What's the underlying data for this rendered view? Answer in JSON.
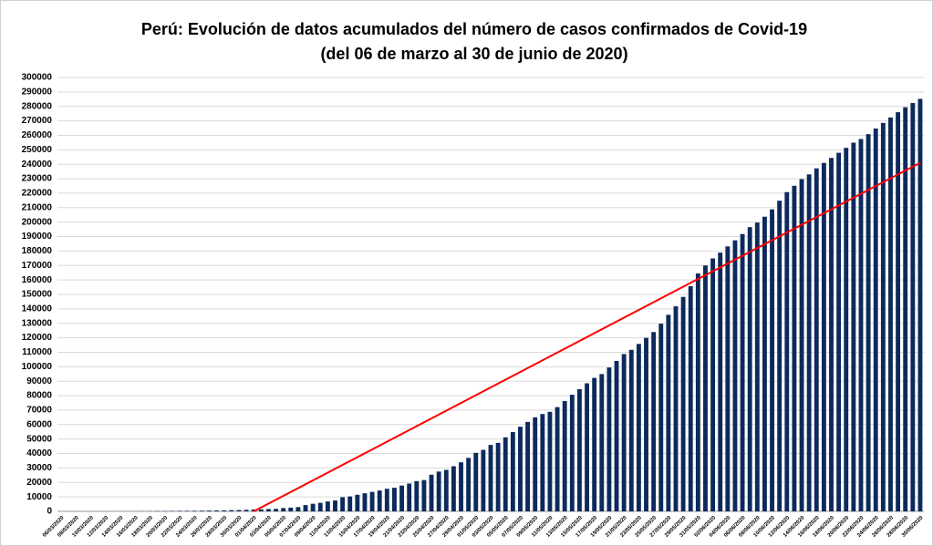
{
  "chart_data": {
    "type": "bar",
    "title": "Perú: Evolución de datos acumulados del número de casos confirmados de Covid-19",
    "subtitle": "(del 06 de marzo al 30 de junio de 2020)",
    "color": "#0d2a5c",
    "grid": true,
    "ylim": [
      0,
      300000
    ],
    "yticks": [
      0,
      10000,
      20000,
      30000,
      40000,
      50000,
      60000,
      70000,
      80000,
      90000,
      100000,
      110000,
      120000,
      130000,
      140000,
      150000,
      160000,
      170000,
      180000,
      190000,
      200000,
      210000,
      220000,
      230000,
      240000,
      250000,
      260000,
      270000,
      280000,
      290000,
      300000
    ],
    "categories": [
      "06/03/2020",
      null,
      "08/03/2020",
      null,
      "10/03/2020",
      null,
      "12/03/2020",
      null,
      "14/03/2020",
      null,
      "16/03/2020",
      null,
      "18/03/2020",
      null,
      "20/03/2020",
      null,
      "22/03/2020",
      null,
      "24/03/2020",
      null,
      "26/03/2020",
      null,
      "28/03/2020",
      null,
      "30/03/2020",
      null,
      "01/04/2020",
      null,
      "03/04/2020",
      null,
      "05/04/2020",
      null,
      "07/04/2020",
      null,
      "09/04/2020",
      null,
      "11/04/2020",
      null,
      "13/04/2020",
      null,
      "15/04/2020",
      null,
      "17/04/2020",
      null,
      "19/04/2020",
      null,
      "21/04/2020",
      null,
      "23/04/2020",
      null,
      "25/04/2020",
      null,
      "27/04/2020",
      null,
      "29/04/2020",
      null,
      "01/05/2020",
      null,
      "03/05/2020",
      null,
      "05/05/2020",
      null,
      "07/05/2020",
      null,
      "09/05/2020",
      null,
      "11/05/2020",
      null,
      "13/05/2020",
      null,
      "15/05/2020",
      null,
      "17/05/2020",
      null,
      "19/05/2020",
      null,
      "21/05/2020",
      null,
      "23/05/2020",
      null,
      "25/05/2020",
      null,
      "27/05/2020",
      null,
      "29/05/2020",
      null,
      "31/05/2020",
      null,
      "02/06/2020",
      null,
      "04/06/2020",
      null,
      "06/06/2020",
      null,
      "08/06/2020",
      null,
      "10/06/2020",
      null,
      "12/06/2020",
      null,
      "14/06/2020",
      null,
      "16/06/2020",
      null,
      "18/06/2020",
      null,
      "20/06/2020",
      null,
      "22/06/2020",
      null,
      "24/06/2020",
      null,
      "26/06/2020",
      null,
      "28/06/2020",
      null,
      "30/06/2020"
    ],
    "values": [
      1,
      6,
      7,
      9,
      11,
      17,
      22,
      38,
      43,
      71,
      86,
      117,
      145,
      234,
      234,
      318,
      363,
      395,
      416,
      480,
      580,
      635,
      671,
      852,
      950,
      1065,
      1323,
      1414,
      1595,
      1746,
      2281,
      2561,
      2954,
      4342,
      5256,
      5897,
      6848,
      7519,
      9784,
      10303,
      11475,
      12491,
      13489,
      14420,
      15628,
      16325,
      17837,
      19250,
      20914,
      21648,
      25331,
      27517,
      28699,
      31190,
      33931,
      36976,
      40459,
      42534,
      45928,
      47372,
      51189,
      54817,
      58526,
      61847,
      65015,
      67307,
      68822,
      72059,
      76306,
      80604,
      84495,
      88541,
      92273,
      94933,
      99483,
      104020,
      108769,
      111698,
      115754,
      119959,
      123979,
      129751,
      135905,
      141779,
      148285,
      155671,
      164476,
      170039,
      174884,
      178914,
      183198,
      187400,
      191758,
      196515,
      199696,
      203736,
      208823,
      214788,
      220749,
      225132,
      229736,
      232992,
      237156,
      240908,
      244388,
      247925,
      251338,
      254936,
      257447,
      260810,
      264689,
      268602,
      272364,
      275989,
      279419,
      282365,
      285213
    ],
    "trend_line": {
      "color": "#ff0000",
      "x": [
        26,
        116
      ],
      "y": [
        0,
        241000
      ]
    }
  }
}
